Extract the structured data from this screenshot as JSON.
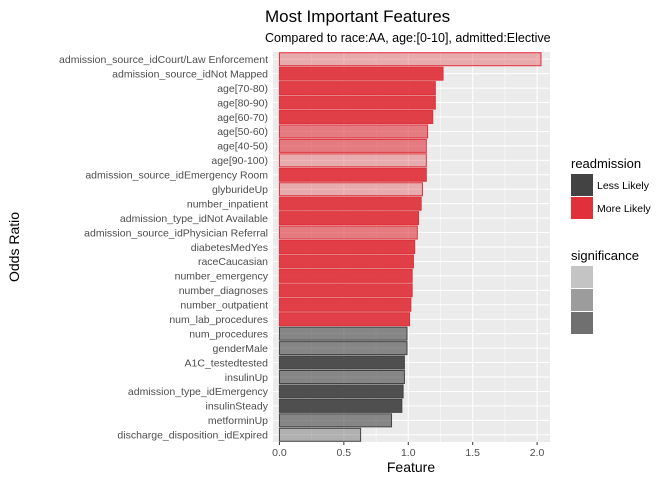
{
  "chart_data": {
    "type": "bar",
    "orientation": "horizontal",
    "title": "Most Important Features",
    "subtitle": "Compared to race:AA, age:[0-10], admitted:Elective",
    "xlabel": "Feature",
    "ylabel": "Odds Ratio",
    "xlim": [
      -0.05,
      2.1
    ],
    "xticks": [
      "0.0",
      "0.5",
      "1.0",
      "1.5",
      "2.0"
    ],
    "grid": true,
    "colors": {
      "less_likely": "#434343",
      "more_likely": "#e0313a",
      "panel_background": "#ebebeb",
      "grid": "#ffffff"
    },
    "bars": [
      {
        "label": "admission_source_idCourt/Law Enforcement",
        "value": 2.03,
        "readmission": "More Likely",
        "significance": "light"
      },
      {
        "label": "admission_source_idNot Mapped",
        "value": 1.27,
        "readmission": "More Likely",
        "significance": "dark"
      },
      {
        "label": "age[70-80)",
        "value": 1.21,
        "readmission": "More Likely",
        "significance": "dark"
      },
      {
        "label": "age[80-90)",
        "value": 1.21,
        "readmission": "More Likely",
        "significance": "dark"
      },
      {
        "label": "age[60-70)",
        "value": 1.19,
        "readmission": "More Likely",
        "significance": "dark"
      },
      {
        "label": "age[50-60)",
        "value": 1.15,
        "readmission": "More Likely",
        "significance": "medium"
      },
      {
        "label": "age[40-50)",
        "value": 1.14,
        "readmission": "More Likely",
        "significance": "medium"
      },
      {
        "label": "age[90-100)",
        "value": 1.14,
        "readmission": "More Likely",
        "significance": "light"
      },
      {
        "label": "admission_source_idEmergency Room",
        "value": 1.14,
        "readmission": "More Likely",
        "significance": "dark"
      },
      {
        "label": "glyburideUp",
        "value": 1.11,
        "readmission": "More Likely",
        "significance": "light"
      },
      {
        "label": "number_inpatient",
        "value": 1.1,
        "readmission": "More Likely",
        "significance": "dark"
      },
      {
        "label": "admission_type_idNot Available",
        "value": 1.08,
        "readmission": "More Likely",
        "significance": "dark"
      },
      {
        "label": "admission_source_idPhysician Referral",
        "value": 1.07,
        "readmission": "More Likely",
        "significance": "medium"
      },
      {
        "label": "diabetesMedYes",
        "value": 1.05,
        "readmission": "More Likely",
        "significance": "dark"
      },
      {
        "label": "raceCaucasian",
        "value": 1.04,
        "readmission": "More Likely",
        "significance": "dark"
      },
      {
        "label": "number_emergency",
        "value": 1.03,
        "readmission": "More Likely",
        "significance": "dark"
      },
      {
        "label": "number_diagnoses",
        "value": 1.03,
        "readmission": "More Likely",
        "significance": "dark"
      },
      {
        "label": "number_outpatient",
        "value": 1.02,
        "readmission": "More Likely",
        "significance": "dark"
      },
      {
        "label": "num_lab_procedures",
        "value": 1.01,
        "readmission": "More Likely",
        "significance": "dark"
      },
      {
        "label": "num_procedures",
        "value": 0.99,
        "readmission": "Less Likely",
        "significance": "medium"
      },
      {
        "label": "genderMale",
        "value": 0.99,
        "readmission": "Less Likely",
        "significance": "medium"
      },
      {
        "label": "A1C_testedtested",
        "value": 0.97,
        "readmission": "Less Likely",
        "significance": "dark"
      },
      {
        "label": "insulinUp",
        "value": 0.97,
        "readmission": "Less Likely",
        "significance": "medium"
      },
      {
        "label": "admission_type_idEmergency",
        "value": 0.96,
        "readmission": "Less Likely",
        "significance": "dark"
      },
      {
        "label": "insulinSteady",
        "value": 0.95,
        "readmission": "Less Likely",
        "significance": "dark"
      },
      {
        "label": "metforminUp",
        "value": 0.87,
        "readmission": "Less Likely",
        "significance": "medium"
      },
      {
        "label": "discharge_disposition_idExpired",
        "value": 0.63,
        "readmission": "Less Likely",
        "significance": "light"
      }
    ],
    "legend": {
      "placement": "right",
      "readmission": {
        "title": "readmission",
        "entries": [
          {
            "label": "Less Likely",
            "color": "#434343"
          },
          {
            "label": "More Likely",
            "color": "#e0313a"
          }
        ]
      },
      "significance": {
        "title": "significance",
        "swatch_colors": [
          "#c4c4c4",
          "#9c9c9c",
          "#707070"
        ]
      }
    }
  }
}
